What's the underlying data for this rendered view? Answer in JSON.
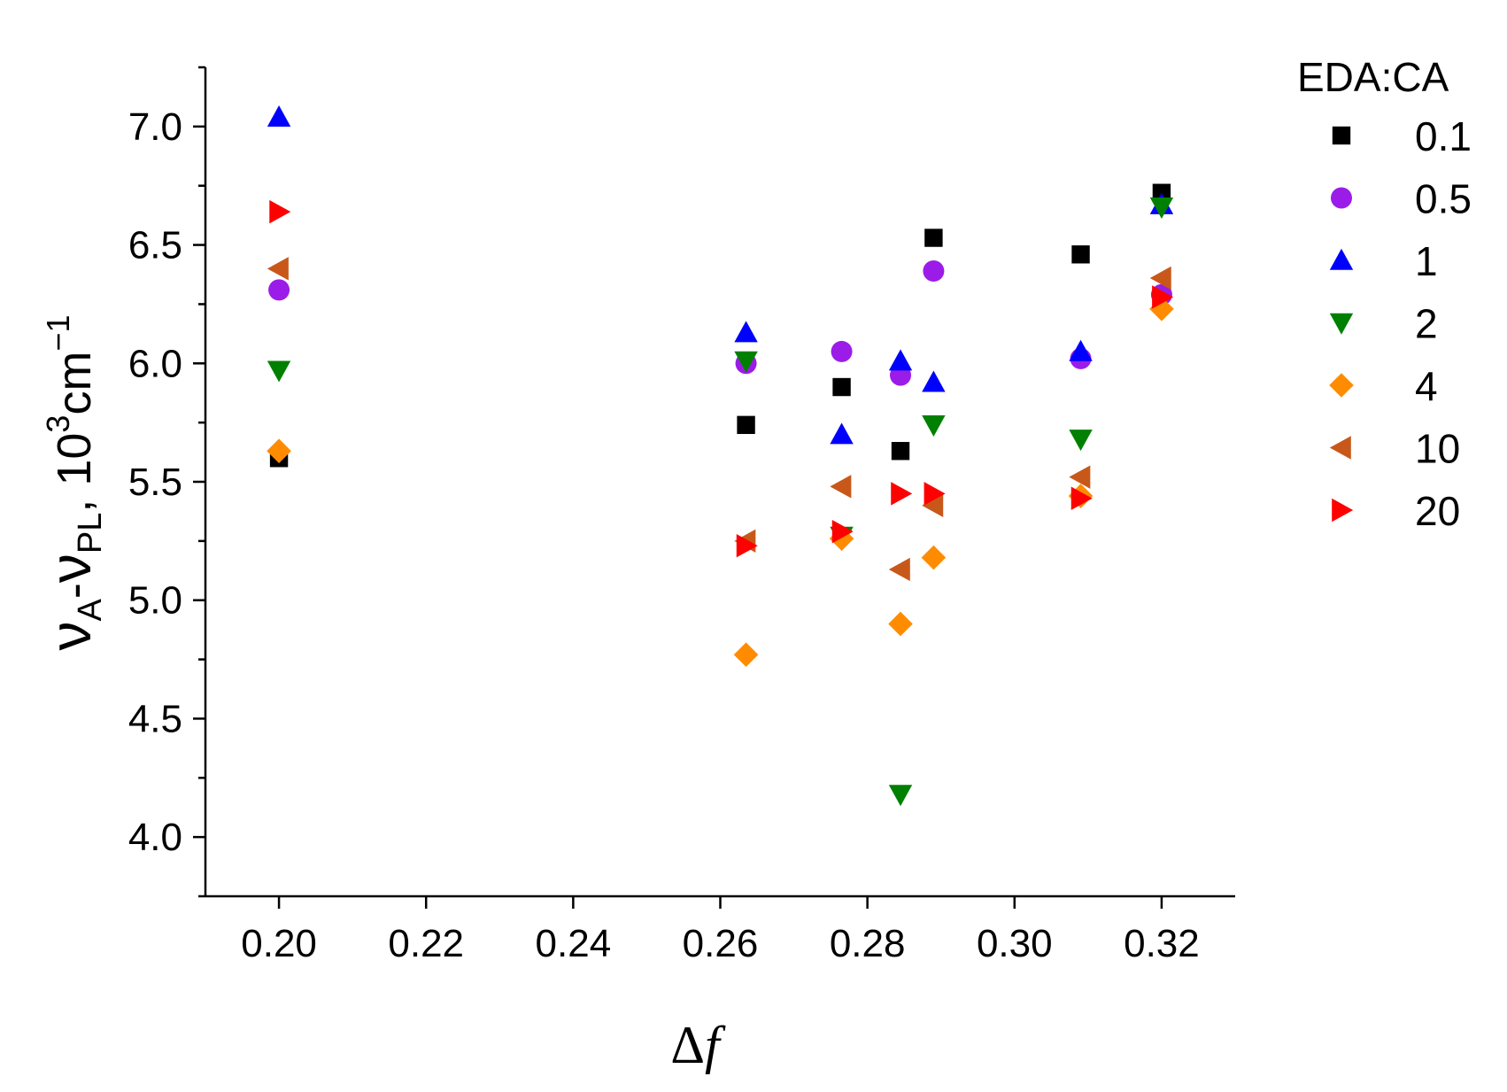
{
  "chart_data": {
    "type": "scatter",
    "title": "",
    "xlim": [
      0.19,
      0.33
    ],
    "ylim": [
      3.75,
      7.25
    ],
    "x_ticks": [
      "0.20",
      "0.22",
      "0.24",
      "0.26",
      "0.28",
      "0.30",
      "0.32"
    ],
    "y_ticks": [
      "4.0",
      "4.5",
      "5.0",
      "5.5",
      "6.0",
      "6.5",
      "7.0"
    ],
    "xlabel": {
      "symbol": "Δ",
      "var": "f"
    },
    "ylabel": {
      "nu1": "ν",
      "sub1": "A",
      "dash": "-",
      "nu2": "ν",
      "sub2": "PL",
      "comma": ", ",
      "base": "10",
      "exp": "3",
      "unit": "cm",
      "unit_exp": "−1"
    },
    "grid": false,
    "legend": {
      "title": "EDA:CA",
      "placement": "top-right outside"
    },
    "series": [
      {
        "name": "0.1",
        "marker": "square",
        "color": "#000000",
        "x": [
          0.2,
          0.2635,
          0.2765,
          0.2845,
          0.289,
          0.309,
          0.32
        ],
        "y": [
          5.6,
          5.74,
          5.9,
          5.63,
          6.53,
          6.46,
          6.72
        ]
      },
      {
        "name": "0.5",
        "marker": "circle",
        "color": "#9b1ce8",
        "x": [
          0.2,
          0.2635,
          0.2765,
          0.2845,
          0.289,
          0.309,
          0.32
        ],
        "y": [
          6.31,
          6.0,
          6.05,
          5.95,
          6.39,
          6.02,
          6.29
        ]
      },
      {
        "name": "1",
        "marker": "triangle-up",
        "color": "#0000ff",
        "x": [
          0.2,
          0.2635,
          0.2765,
          0.2845,
          0.289,
          0.309,
          0.32
        ],
        "y": [
          7.04,
          6.13,
          5.7,
          6.01,
          5.92,
          6.05,
          6.67
        ]
      },
      {
        "name": "2",
        "marker": "triangle-down",
        "color": "#008000",
        "x": [
          0.2,
          0.2635,
          0.2765,
          0.2845,
          0.289,
          0.309,
          0.32
        ],
        "y": [
          5.97,
          6.01,
          5.27,
          4.18,
          5.74,
          5.68,
          6.66
        ]
      },
      {
        "name": "4",
        "marker": "diamond",
        "color": "#ff8c00",
        "x": [
          0.2,
          0.2635,
          0.2765,
          0.2845,
          0.289,
          0.309,
          0.32
        ],
        "y": [
          5.63,
          4.77,
          5.26,
          4.9,
          5.18,
          5.44,
          6.23
        ]
      },
      {
        "name": "10",
        "marker": "triangle-left",
        "color": "#c8581a",
        "x": [
          0.2,
          0.2635,
          0.2765,
          0.2845,
          0.289,
          0.309,
          0.32
        ],
        "y": [
          6.4,
          5.25,
          5.48,
          5.13,
          5.4,
          5.52,
          6.36
        ]
      },
      {
        "name": "20",
        "marker": "triangle-right",
        "color": "#ff0000",
        "x": [
          0.2,
          0.2635,
          0.2765,
          0.2845,
          0.289,
          0.309,
          0.32
        ],
        "y": [
          6.64,
          5.23,
          5.29,
          5.45,
          5.45,
          5.43,
          6.28
        ]
      }
    ]
  }
}
